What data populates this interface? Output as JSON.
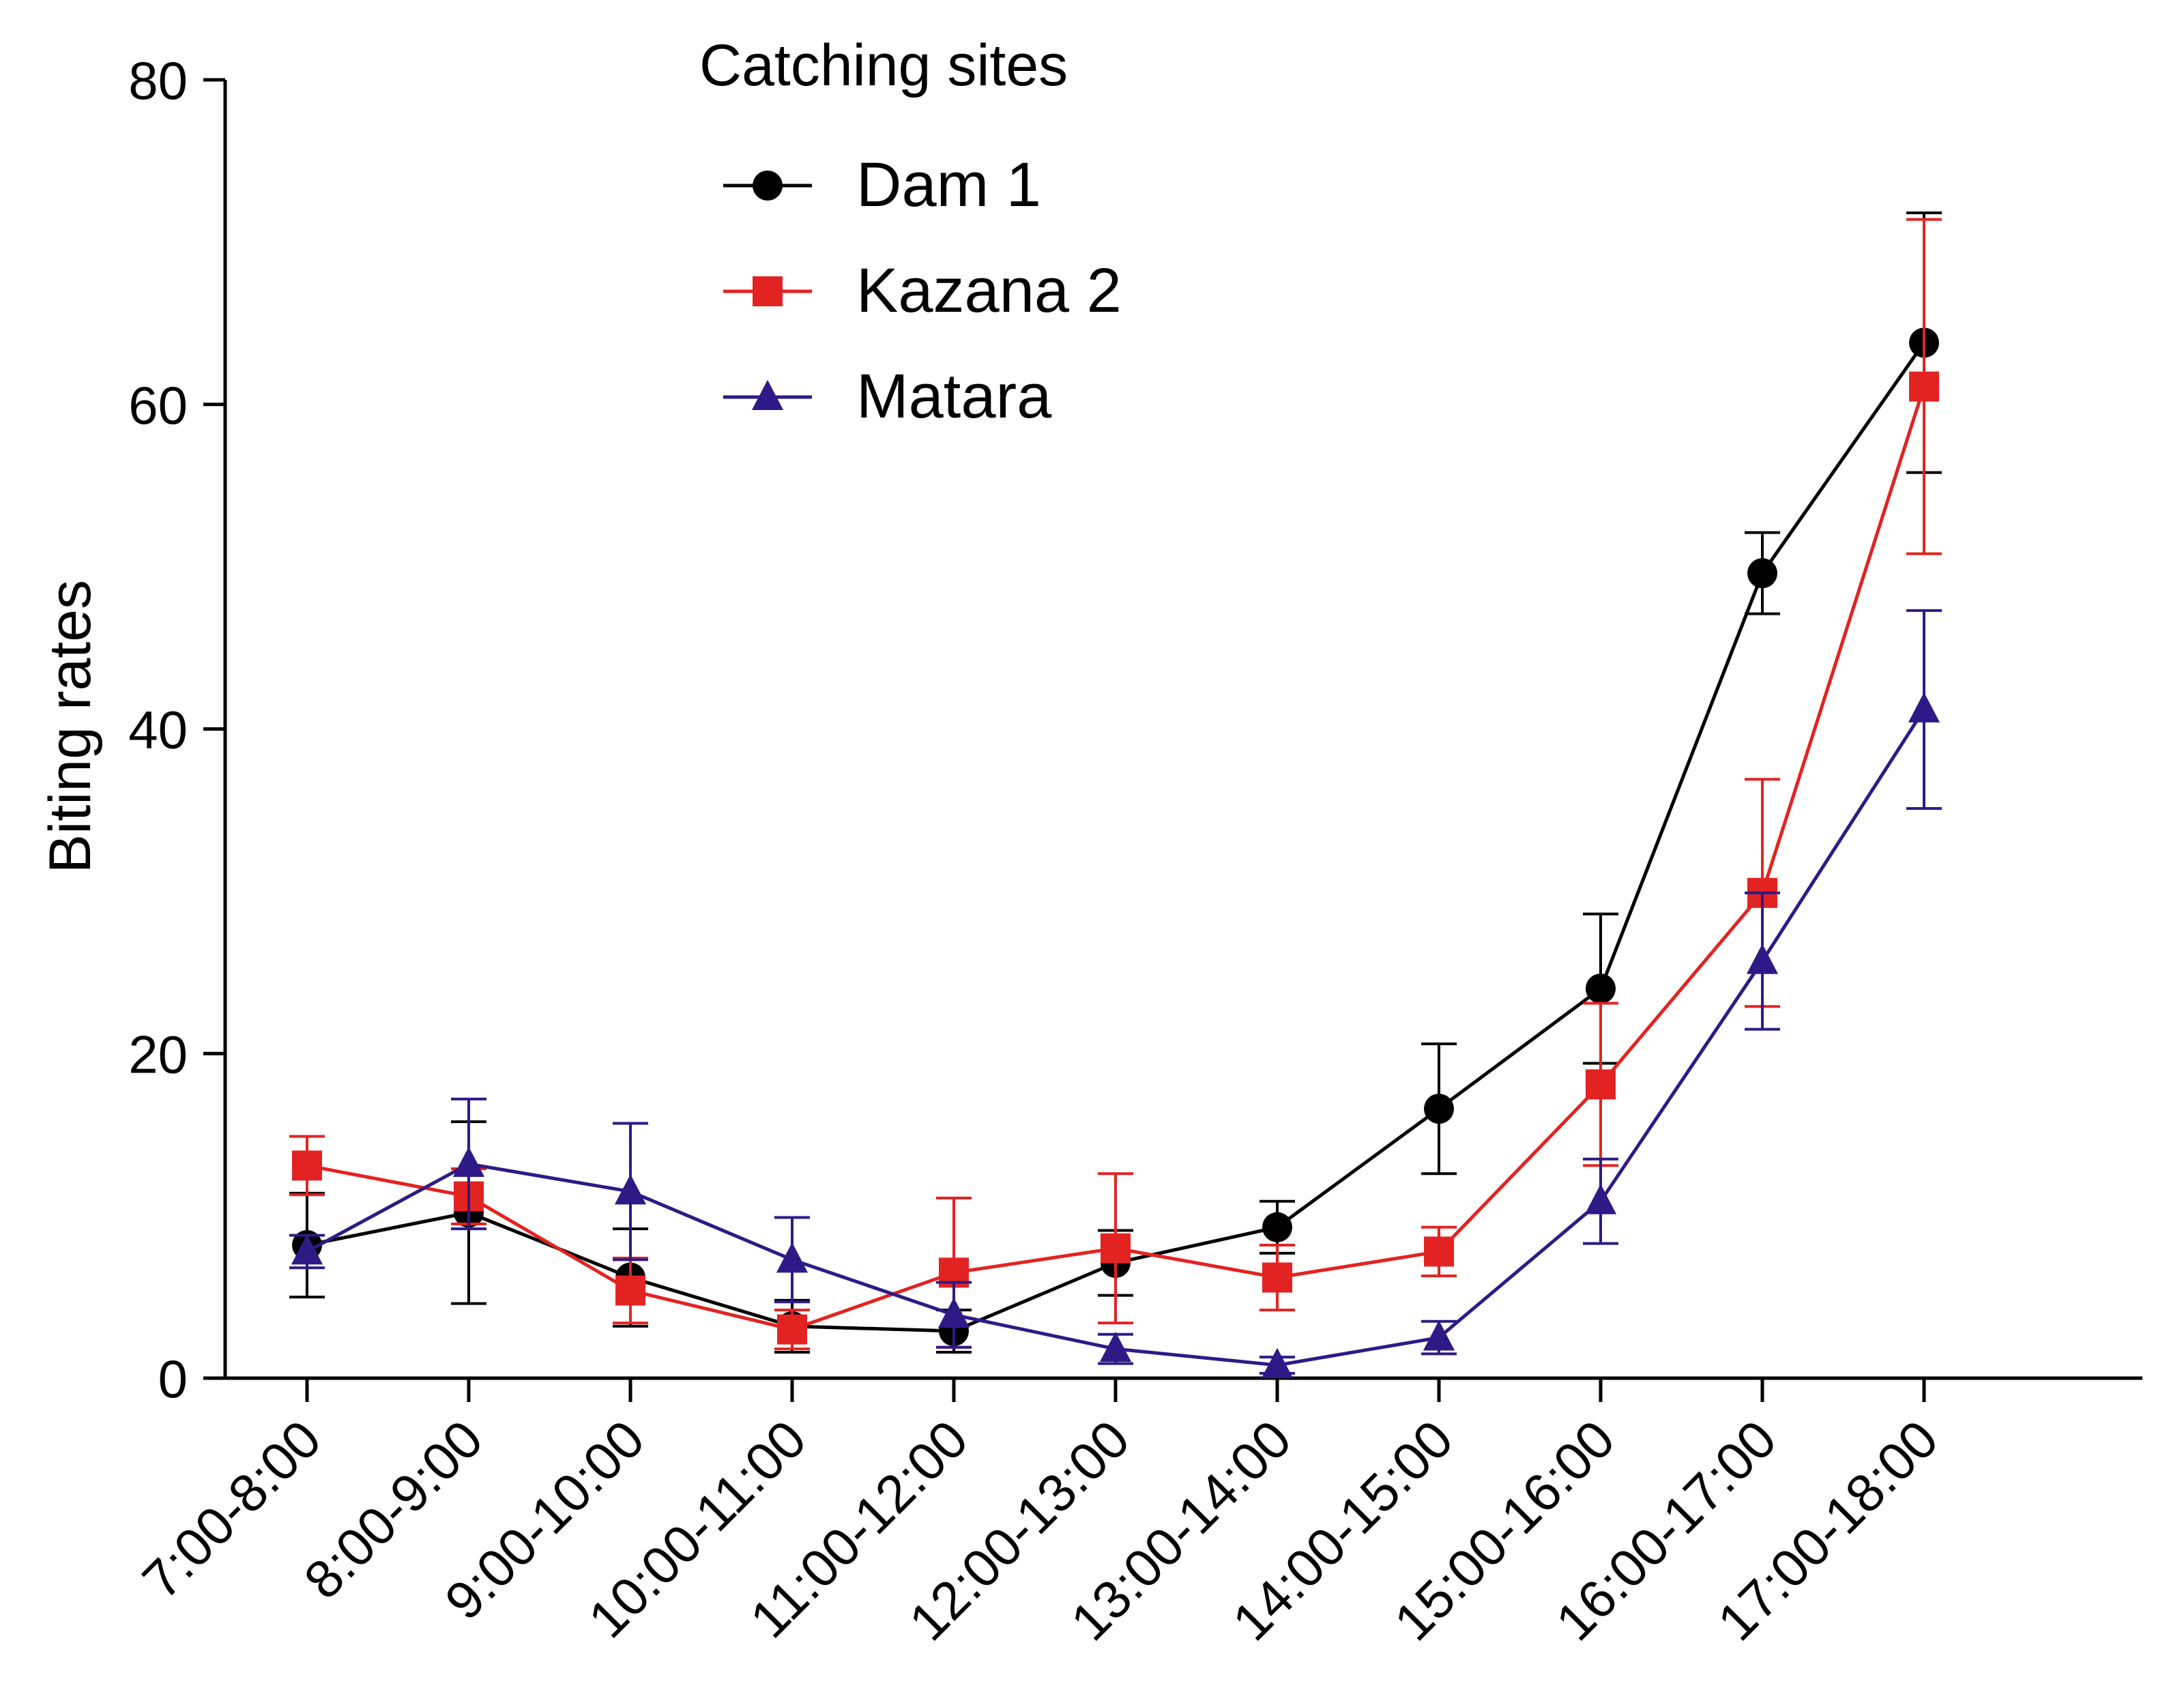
{
  "chart_data": {
    "type": "line",
    "title": "",
    "xlabel": "",
    "ylabel": "Biting rates",
    "ylim": [
      0,
      80
    ],
    "yticks": [
      0,
      20,
      40,
      60,
      80
    ],
    "grid": false,
    "legend_title": "Catching sites",
    "legend_position": "top-center",
    "categories": [
      "7:00-8:00",
      "8:00-9:00",
      "9:00-10:00",
      "10:00-11:00",
      "11:00-12:00",
      "12:00-13:00",
      "13:00-14:00",
      "14:00-15:00",
      "15:00-16:00",
      "16:00-17:00",
      "17:00-18:00"
    ],
    "series": [
      {
        "name": "Dam 1",
        "color": "#000000",
        "marker": "circle",
        "values": [
          8.2,
          10.2,
          6.2,
          3.2,
          2.9,
          7.1,
          9.3,
          16.6,
          24.0,
          49.6,
          63.8
        ],
        "error": [
          3.2,
          5.6,
          3.0,
          1.6,
          1.3,
          2.0,
          1.6,
          4.0,
          4.6,
          2.5,
          8.0
        ]
      },
      {
        "name": "Kazana 2",
        "color": "#e32322",
        "marker": "square",
        "values": [
          13.1,
          11.2,
          5.4,
          3.0,
          6.5,
          8.0,
          6.2,
          7.8,
          18.1,
          29.9,
          61.1
        ],
        "error": [
          1.8,
          1.7,
          2.0,
          1.2,
          4.6,
          4.6,
          2.0,
          1.5,
          5.0,
          7.0,
          10.3
        ]
      },
      {
        "name": "Matara",
        "color": "#2e1a87",
        "marker": "triangle",
        "values": [
          7.8,
          13.2,
          11.5,
          7.3,
          3.9,
          1.8,
          0.8,
          2.5,
          10.9,
          25.7,
          41.2
        ],
        "error": [
          1.0,
          4.0,
          4.2,
          2.6,
          2.0,
          0.9,
          0.5,
          1.0,
          2.6,
          4.2,
          6.1
        ]
      }
    ]
  }
}
